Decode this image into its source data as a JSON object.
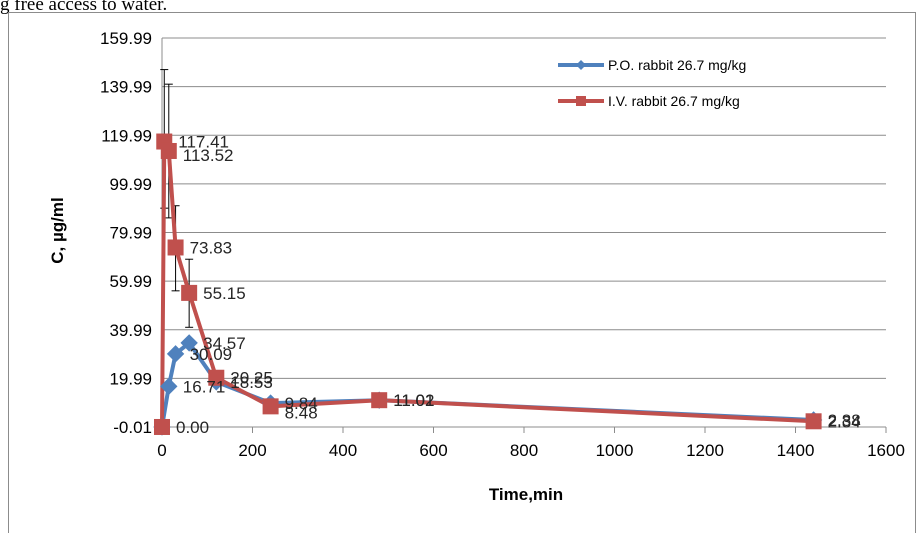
{
  "page_text": {
    "top_fragment": "g free access to water."
  },
  "chart_data": {
    "type": "line",
    "title": "",
    "xlabel": "Time,min",
    "ylabel": "C, µg/ml",
    "xlim": [
      0,
      1600
    ],
    "ylim": [
      -0.01,
      159.99
    ],
    "xticks": [
      "0",
      "200",
      "400",
      "600",
      "800",
      "1000",
      "1200",
      "1400",
      "1600"
    ],
    "yticks": [
      "-0.01",
      "19.99",
      "39.99",
      "59.99",
      "79.99",
      "99.99",
      "119.99",
      "139.99",
      "159.99"
    ],
    "grid": true,
    "legend_position": "top-right",
    "series": [
      {
        "name": "P.O. rabbit 26.7 mg/kg",
        "color": "#4f81bd",
        "marker": "diamond",
        "x": [
          0,
          15,
          30,
          60,
          120,
          240,
          480,
          1440
        ],
        "y": [
          0.0,
          16.71,
          30.09,
          34.57,
          18.53,
          9.84,
          11.01,
          2.88
        ],
        "labels": [
          "",
          "16.71",
          "30.09",
          "34.57",
          "18.53",
          "9.84",
          "11.01",
          "2.88"
        ]
      },
      {
        "name": "I.V. rabbit 26.7 mg/kg",
        "color": "#c0504d",
        "marker": "square",
        "x": [
          0,
          5,
          15,
          30,
          60,
          120,
          240,
          480,
          1440
        ],
        "y": [
          0.0,
          117.41,
          113.52,
          73.83,
          55.15,
          20.25,
          8.48,
          11.02,
          2.34
        ],
        "labels": [
          "0.00",
          "117.41",
          "113.52",
          "73.83",
          "55.15",
          "20.25",
          "8.48",
          "11.02",
          "2.34"
        ],
        "error_bars": [
          {
            "x": 5,
            "low": 90.0,
            "high": 147.0
          },
          {
            "x": 15,
            "low": 86.0,
            "high": 141.0
          },
          {
            "x": 30,
            "low": 56.0,
            "high": 91.0
          },
          {
            "x": 60,
            "low": 41.0,
            "high": 69.0
          }
        ]
      }
    ]
  }
}
